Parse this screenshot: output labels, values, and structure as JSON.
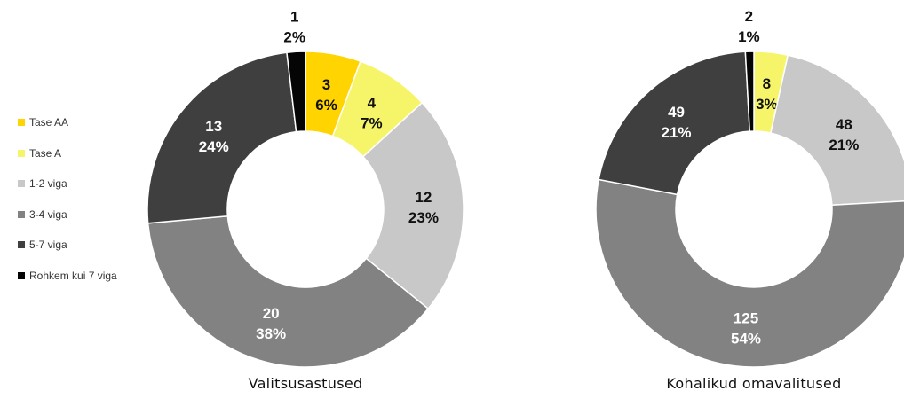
{
  "chart_data": [
    {
      "type": "donut",
      "title": "Valitsusastused",
      "categories": [
        "Tase AA",
        "Tase A",
        "1-2 viga",
        "3-4 viga",
        "5-7 viga",
        "Rohkem kui 7 viga"
      ],
      "values": [
        3,
        4,
        12,
        20,
        13,
        1
      ],
      "percent_labels": [
        "6%",
        "7%",
        "23%",
        "38%",
        "24%",
        "2%"
      ],
      "legend_position": "left"
    },
    {
      "type": "donut",
      "title": "Kohalikud omavalitused",
      "categories": [
        "Tase AA",
        "Tase A",
        "1-2 viga",
        "3-4 viga",
        "5-7 viga",
        "Rohkem kui 7 viga"
      ],
      "values": [
        0,
        8,
        48,
        125,
        49,
        2
      ],
      "percent_labels": [
        "",
        "3%",
        "21%",
        "54%",
        "21%",
        "1%"
      ]
    }
  ],
  "legend": {
    "items": [
      {
        "label": "Tase AA",
        "color": "#ffd400"
      },
      {
        "label": "Tase A",
        "color": "#f6f56a"
      },
      {
        "label": "1-2 viga",
        "color": "#c8c8c8"
      },
      {
        "label": "3-4 viga",
        "color": "#828282"
      },
      {
        "label": "5-7 viga",
        "color": "#3f3f3f"
      },
      {
        "label": "Rohkem kui 7 viga",
        "color": "#050505"
      }
    ]
  },
  "label_colors": [
    "#111111",
    "#111111",
    "#111111",
    "#ffffff",
    "#ffffff",
    "#111111"
  ]
}
